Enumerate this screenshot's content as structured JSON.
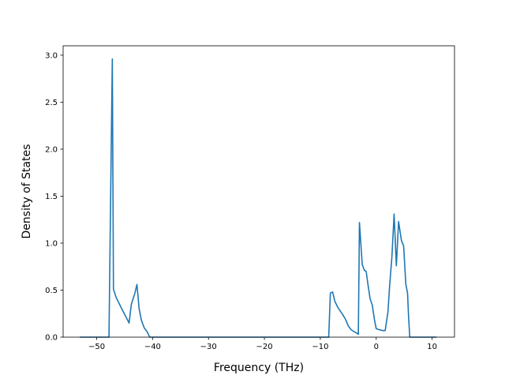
{
  "chart_data": {
    "type": "line",
    "title": "",
    "xlabel": "Frequency (THz)",
    "ylabel": "Density of States",
    "xlim": [
      -56,
      14
    ],
    "ylim": [
      0,
      3.1
    ],
    "grid": false,
    "legend": "none",
    "xticks": [
      -50,
      -40,
      -30,
      -20,
      -10,
      0,
      10
    ],
    "xtick_labels": [
      "−50",
      "−40",
      "−30",
      "−20",
      "−10",
      "0",
      "10"
    ],
    "yticks": [
      0.0,
      0.5,
      1.0,
      1.5,
      2.0,
      2.5,
      3.0
    ],
    "ytick_labels": [
      "0.0",
      "0.5",
      "1.0",
      "1.5",
      "2.0",
      "2.5",
      "3.0"
    ],
    "series": [
      {
        "color": "#1f77b4",
        "x": [
          -53.0,
          -47.8,
          -47.5,
          -47.2,
          -47.0,
          -46.5,
          -45.5,
          -44.2,
          -43.8,
          -43.2,
          -42.8,
          -42.4,
          -42.0,
          -41.5,
          -41.0,
          -40.5,
          -30.0,
          -20.0,
          -10.0,
          -8.5,
          -8.2,
          -7.8,
          -7.4,
          -6.8,
          -6.0,
          -5.5,
          -5.0,
          -4.5,
          -4.0,
          -3.4,
          -3.2,
          -3.0,
          -2.5,
          -2.1,
          -1.8,
          -1.5,
          -1.1,
          -0.7,
          -0.3,
          0.0,
          0.5,
          1.2,
          1.6,
          2.1,
          2.4,
          2.8,
          3.2,
          3.6,
          4.0,
          4.5,
          4.9,
          5.3,
          5.6,
          5.8,
          6.0,
          8.0,
          10.8
        ],
        "y": [
          0.0,
          0.0,
          1.5,
          2.96,
          0.51,
          0.42,
          0.3,
          0.15,
          0.35,
          0.46,
          0.56,
          0.3,
          0.18,
          0.1,
          0.06,
          0.0,
          0.0,
          0.0,
          0.0,
          0.0,
          0.47,
          0.48,
          0.38,
          0.31,
          0.24,
          0.19,
          0.12,
          0.08,
          0.06,
          0.04,
          0.03,
          1.22,
          0.77,
          0.71,
          0.7,
          0.57,
          0.41,
          0.34,
          0.18,
          0.09,
          0.08,
          0.07,
          0.07,
          0.27,
          0.55,
          0.85,
          1.31,
          0.76,
          1.23,
          1.03,
          0.97,
          0.56,
          0.47,
          0.2,
          0.0,
          0.0,
          0.0
        ]
      }
    ]
  }
}
